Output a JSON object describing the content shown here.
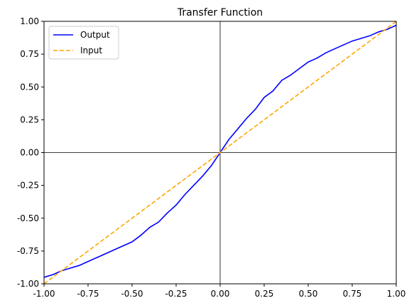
{
  "chart_data": {
    "type": "line",
    "title": "Transfer Function",
    "xlabel": "",
    "ylabel": "",
    "xlim": [
      -1.0,
      1.0
    ],
    "ylim": [
      -1.0,
      1.0
    ],
    "x_ticks": [
      "-1.00",
      "-0.75",
      "-0.50",
      "-0.25",
      "0.00",
      "0.25",
      "0.50",
      "0.75",
      "1.00"
    ],
    "y_ticks": [
      "-1.00",
      "-0.75",
      "-0.50",
      "-0.25",
      "0.00",
      "0.25",
      "0.50",
      "0.75",
      "1.00"
    ],
    "grid": false,
    "zero_lines": true,
    "legend_position": "upper-left",
    "series": [
      {
        "name": "Output",
        "color": "#0000ff",
        "style": "solid",
        "x": [
          -1.0,
          -0.95,
          -0.9,
          -0.85,
          -0.8,
          -0.75,
          -0.7,
          -0.65,
          -0.6,
          -0.55,
          -0.5,
          -0.45,
          -0.4,
          -0.35,
          -0.3,
          -0.25,
          -0.2,
          -0.15,
          -0.1,
          -0.05,
          0.0,
          0.05,
          0.1,
          0.15,
          0.2,
          0.25,
          0.3,
          0.35,
          0.4,
          0.45,
          0.5,
          0.55,
          0.6,
          0.65,
          0.7,
          0.75,
          0.8,
          0.85,
          0.9,
          0.95,
          1.0
        ],
        "y": [
          -0.95,
          -0.93,
          -0.9,
          -0.88,
          -0.86,
          -0.83,
          -0.8,
          -0.77,
          -0.74,
          -0.71,
          -0.68,
          -0.63,
          -0.57,
          -0.53,
          -0.46,
          -0.4,
          -0.32,
          -0.25,
          -0.18,
          -0.1,
          0.0,
          0.1,
          0.18,
          0.26,
          0.33,
          0.42,
          0.47,
          0.55,
          0.59,
          0.64,
          0.69,
          0.72,
          0.76,
          0.79,
          0.82,
          0.85,
          0.87,
          0.89,
          0.92,
          0.94,
          0.97
        ]
      },
      {
        "name": "Input",
        "color": "#ffa500",
        "style": "dashed",
        "x": [
          -1.0,
          1.0
        ],
        "y": [
          -1.0,
          1.0
        ]
      }
    ]
  }
}
